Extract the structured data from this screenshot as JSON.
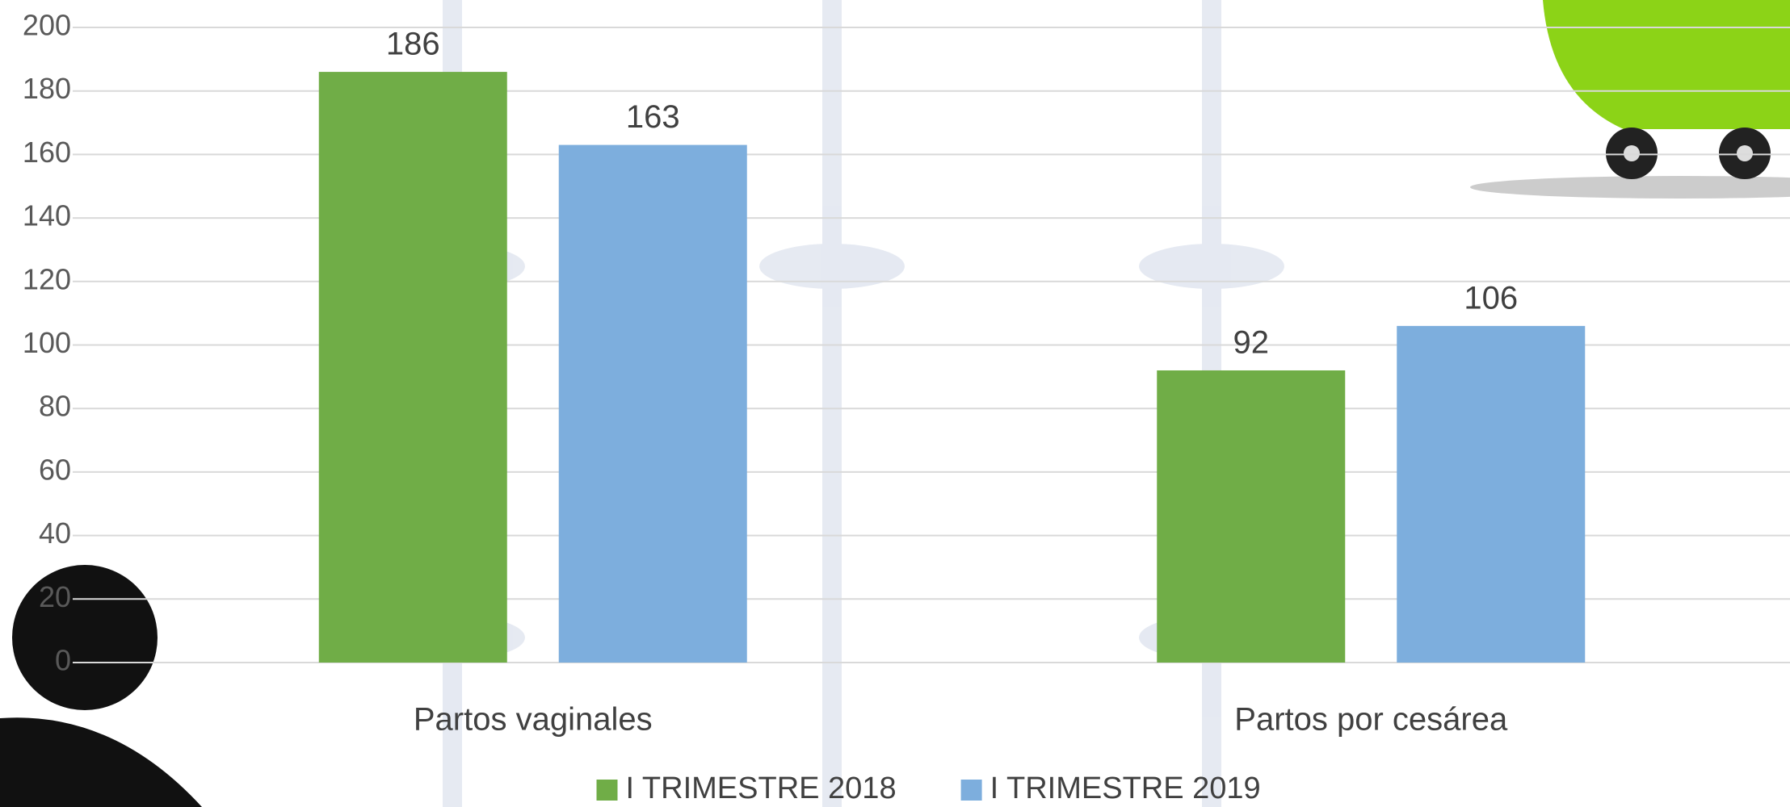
{
  "chart_data": {
    "type": "bar",
    "categories": [
      "Partos vaginales",
      "Partos por cesárea"
    ],
    "series": [
      {
        "name": "I TRIMESTRE 2018",
        "color": "#70ad47",
        "values": [
          186,
          92
        ]
      },
      {
        "name": "I TRIMESTRE 2019",
        "color": "#7daedd",
        "values": [
          163,
          106
        ]
      }
    ],
    "ylim": [
      0,
      200
    ],
    "yticks": [
      0,
      20,
      40,
      60,
      80,
      100,
      120,
      140,
      160,
      180,
      200
    ],
    "grid": true,
    "legend": "bottom",
    "data_labels": true
  }
}
